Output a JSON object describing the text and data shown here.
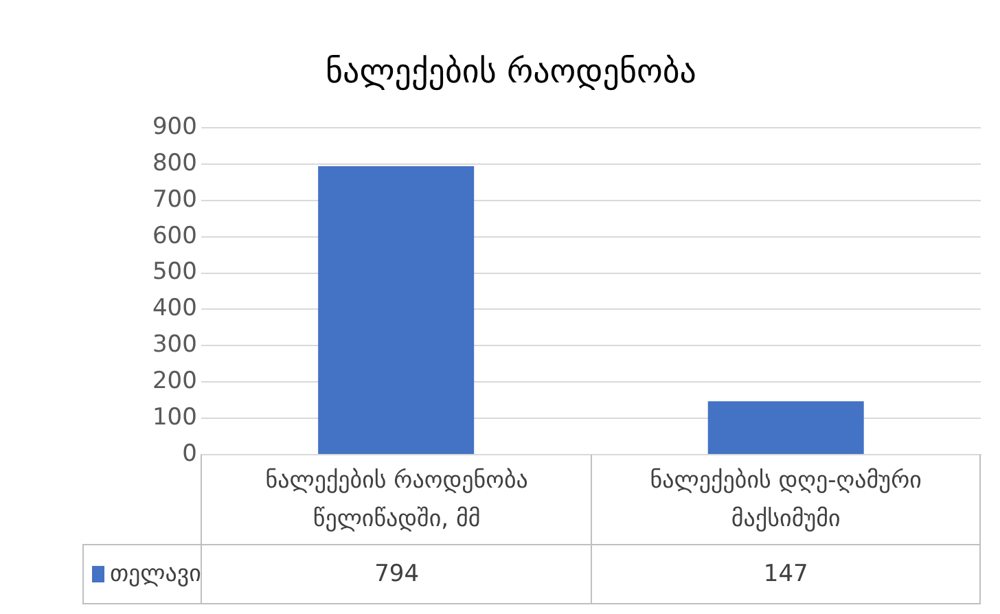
{
  "chart_data": {
    "type": "bar",
    "title": "ნალექების რაოდენობა",
    "categories": [
      "ნალექების რაოდენობა წელიწადში, მმ",
      "ნალექების დღე-ღამური მაქსიმუმი"
    ],
    "series": [
      {
        "name": "თელავი",
        "color": "#4472c4",
        "values": [
          794,
          147
        ]
      }
    ],
    "ylim": [
      0,
      900
    ],
    "yticks": [
      0,
      100,
      200,
      300,
      400,
      500,
      600,
      700,
      800,
      900
    ],
    "grid": "y",
    "data_labels": true
  }
}
